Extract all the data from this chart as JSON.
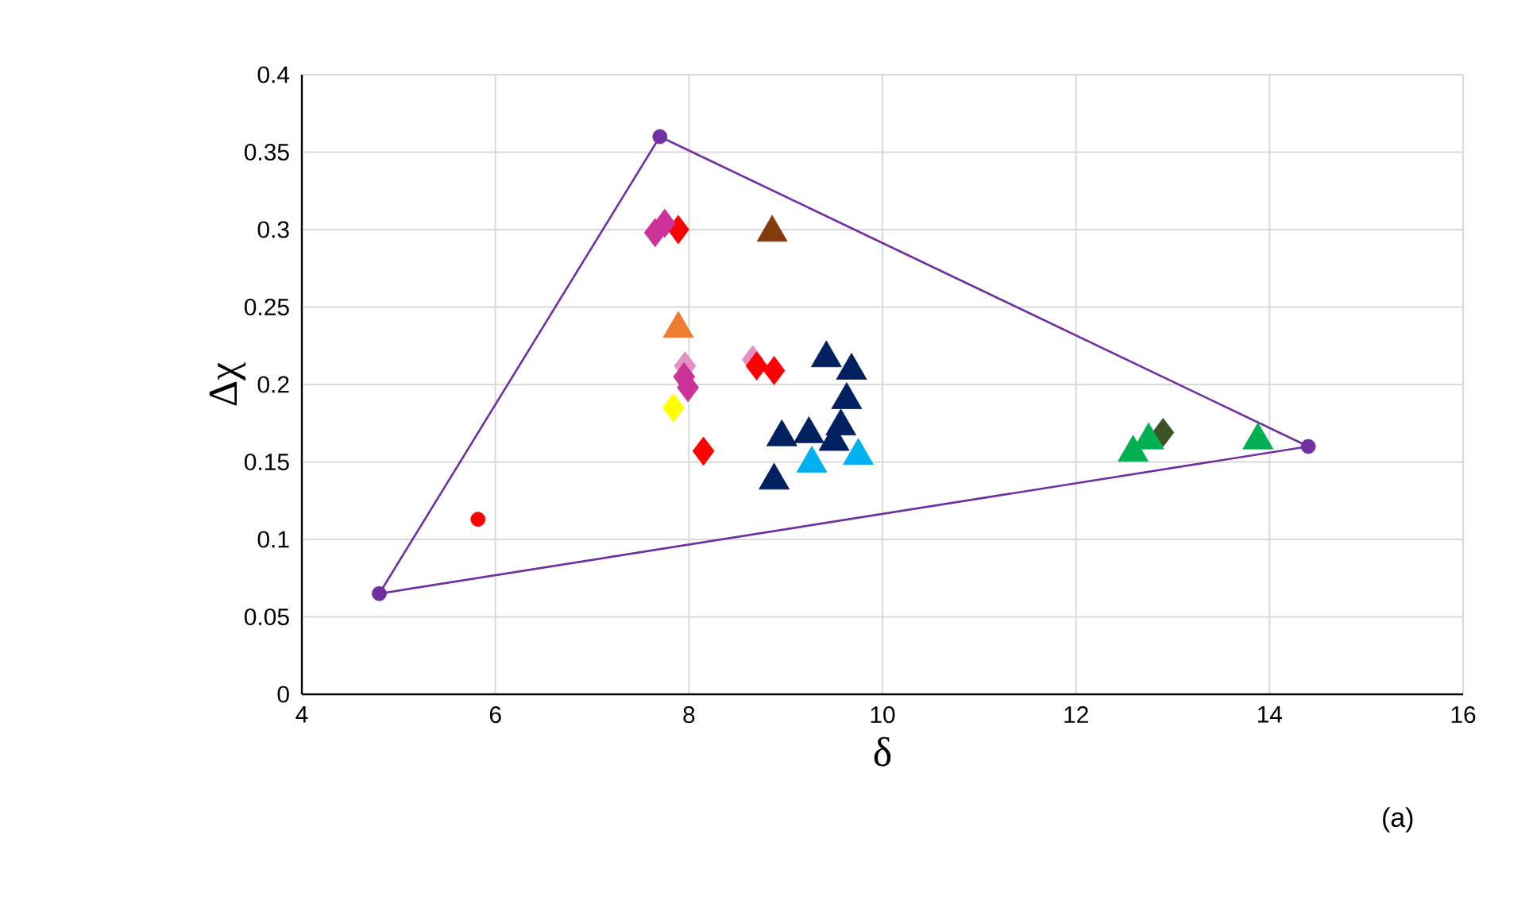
{
  "chart_data": {
    "type": "scatter",
    "xlabel": "δ",
    "ylabel": "Δχ",
    "annotations": [
      "(a)"
    ],
    "xlim": [
      4,
      16
    ],
    "ylim": [
      0,
      0.4
    ],
    "xticks": [
      4,
      6,
      8,
      10,
      12,
      14,
      16
    ],
    "yticks": [
      0,
      0.05,
      0.1,
      0.15,
      0.2,
      0.25,
      0.3,
      0.35,
      0.4
    ],
    "grid": true,
    "series": [
      {
        "type": "line",
        "color": "#7030a0",
        "marker": "none",
        "x": [
          4.8,
          7.7
        ],
        "values": [
          0.065,
          0.36
        ]
      },
      {
        "type": "line",
        "color": "#7030a0",
        "marker": "none",
        "x": [
          7.7,
          14.4
        ],
        "values": [
          0.36,
          0.16
        ]
      },
      {
        "type": "line",
        "color": "#7030a0",
        "marker": "none",
        "x": [
          4.8,
          14.4
        ],
        "values": [
          0.065,
          0.16
        ]
      },
      {
        "color": "#7030a0",
        "marker": "circle",
        "x": [
          4.8,
          7.7,
          14.4
        ],
        "values": [
          0.065,
          0.36,
          0.16
        ]
      },
      {
        "color": "#ff0000",
        "marker": "circle",
        "x": [
          5.82
        ],
        "values": [
          0.113
        ]
      },
      {
        "color": "#e58fc5",
        "marker": "diamond",
        "x": [
          7.96,
          8.66
        ],
        "values": [
          0.212,
          0.216
        ]
      },
      {
        "color": "#ff0000",
        "marker": "diamond",
        "x": [
          7.89,
          8.7,
          8.88,
          8.15
        ],
        "values": [
          0.3,
          0.212,
          0.209,
          0.157
        ]
      },
      {
        "color": "#cc3399",
        "marker": "diamond",
        "x": [
          7.65,
          7.75,
          7.99,
          7.95
        ],
        "values": [
          0.298,
          0.304,
          0.198,
          0.205
        ]
      },
      {
        "color": "#ffff00",
        "marker": "diamond",
        "x": [
          7.84
        ],
        "values": [
          0.185
        ]
      },
      {
        "color": "#843c0c",
        "marker": "triangle",
        "x": [
          8.86
        ],
        "values": [
          0.298
        ]
      },
      {
        "color": "#ed7d31",
        "marker": "triangle",
        "x": [
          7.89
        ],
        "values": [
          0.236
        ]
      },
      {
        "color": "#002060",
        "marker": "triangle",
        "x": [
          9.42,
          9.68,
          9.63,
          9.57,
          8.96,
          9.24,
          9.5,
          8.88
        ],
        "values": [
          0.217,
          0.209,
          0.19,
          0.173,
          0.166,
          0.168,
          0.163,
          0.138
        ]
      },
      {
        "color": "#00b0f0",
        "marker": "triangle",
        "x": [
          9.27,
          9.75
        ],
        "values": [
          0.149,
          0.154
        ]
      },
      {
        "color": "#3d5226",
        "marker": "diamond",
        "x": [
          12.9
        ],
        "values": [
          0.169
        ]
      },
      {
        "color": "#00b050",
        "marker": "triangle",
        "x": [
          12.59,
          12.75,
          13.88
        ],
        "values": [
          0.156,
          0.164,
          0.164
        ]
      }
    ]
  }
}
